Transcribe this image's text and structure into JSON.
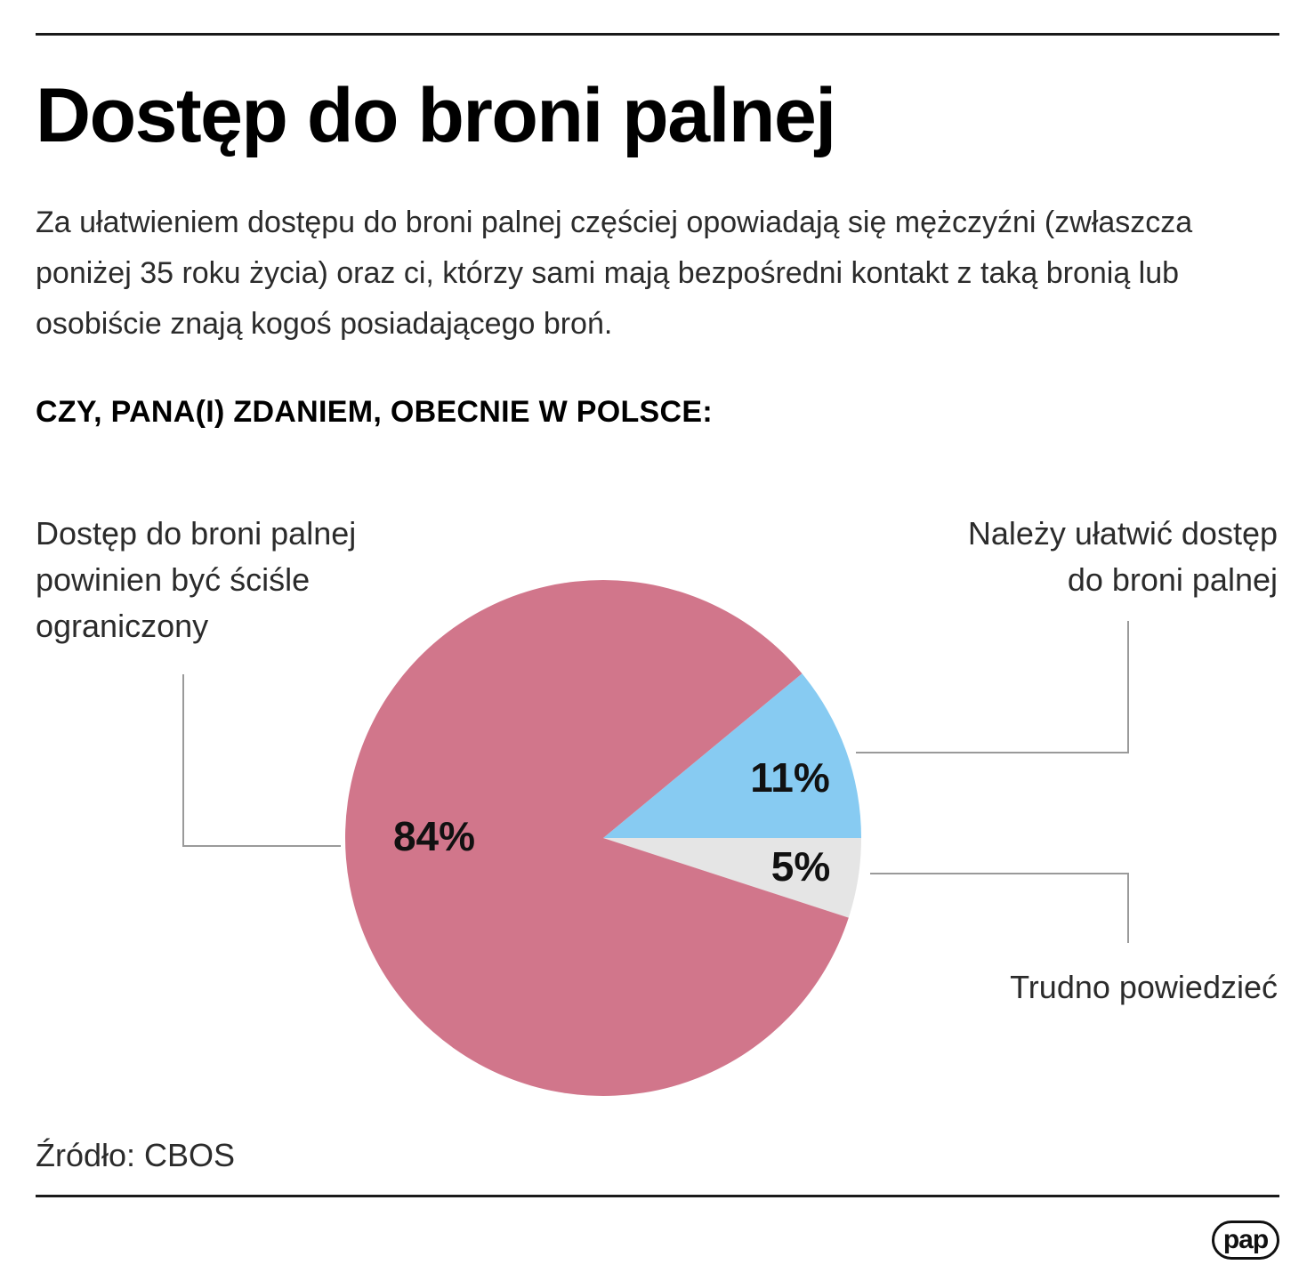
{
  "header": {
    "title": "Dostęp do broni palnej",
    "lead": "Za ułatwieniem dostępu do broni palnej częściej opowiadają się mężczyźni (zwłaszcza poniżej 35 roku życia) oraz ci, którzy sami mają bezpośredni kontakt z taką bronią lub osobiście znają kogoś posiadającego broń.",
    "question": "CZY, PANA(I) ZDANIEM, OBECNIE W POLSCE:"
  },
  "chart_data": {
    "type": "pie",
    "title": "CZY, PANA(I) ZDANIEM, OBECNIE W POLSCE:",
    "slices": [
      {
        "label": "Należy ułatwić dostęp do broni palnej",
        "label_lines": [
          "Należy ułatwić dostęp",
          "do broni palnej"
        ],
        "value": 11,
        "value_label": "11%",
        "color": "#87cbf2"
      },
      {
        "label": "Trudno powiedzieć",
        "label_lines": [
          "Trudno powiedzieć"
        ],
        "value": 5,
        "value_label": "5%",
        "color": "#e5e5e5"
      },
      {
        "label": "Dostęp do broni palnej powinien być ściśle ograniczony",
        "label_lines": [
          "Dostęp do broni palnej",
          "powinien być ściśle",
          "ograniczony"
        ],
        "value": 84,
        "value_label": "84%",
        "color": "#d1768b"
      }
    ],
    "start": "3 o'clock, counter-clockwise for first slice",
    "legend": "none"
  },
  "footer": {
    "source": "Źródło: CBOS",
    "logo_text": "pap"
  },
  "colors": {
    "rule": "#1a1a1a",
    "leader_line": "#9a9a9a"
  }
}
